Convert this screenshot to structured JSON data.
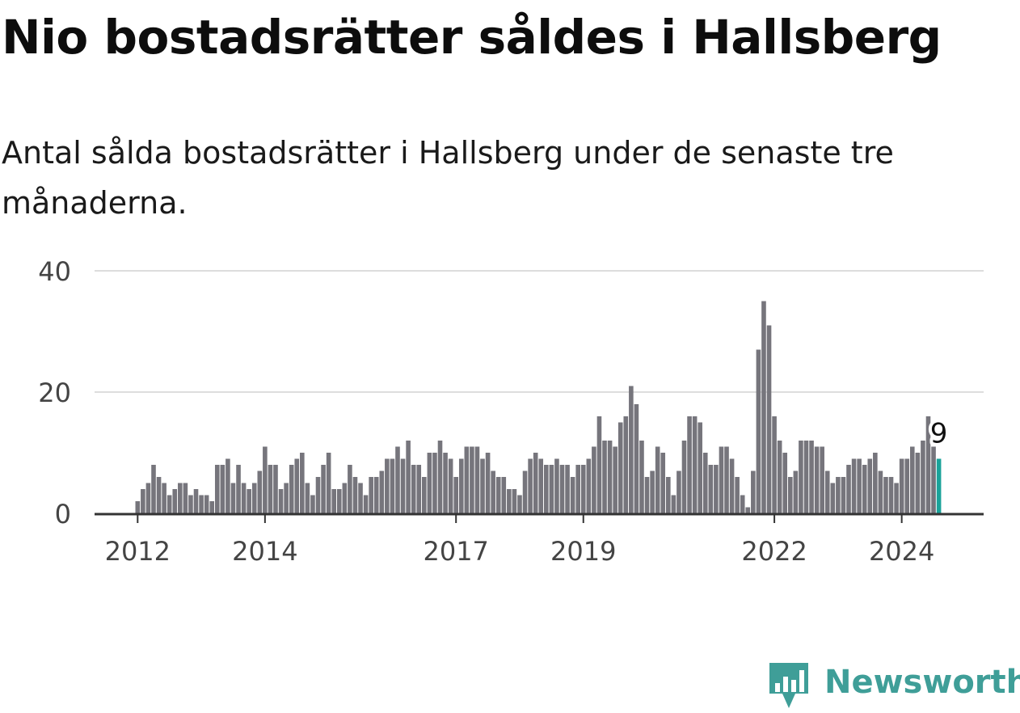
{
  "title": "Nio bostadsrätter såldes i Hallsberg",
  "subtitle": "Antal sålda bostadsrätter i Hallsberg under de senaste tre månaderna.",
  "brand": {
    "name": "Newsworthy",
    "icon": "newsworthy-logo-icon",
    "color": "#3f9e98"
  },
  "colors": {
    "bar": "#76757c",
    "highlight": "#1aa39a",
    "grid": "#dddddd",
    "axis": "#333333",
    "tick_text": "#444444"
  },
  "chart_data": {
    "type": "bar",
    "title": "",
    "xlabel": "",
    "ylabel": "",
    "ylim": [
      0,
      40
    ],
    "yticks": [
      "0",
      "20",
      "40"
    ],
    "xticks": [
      "2012",
      "2014",
      "2017",
      "2019",
      "2022",
      "2024"
    ],
    "grid": true,
    "series": [
      {
        "values": [
          2,
          4,
          5,
          8,
          6,
          5,
          3,
          4,
          5,
          5,
          3,
          4,
          3,
          3,
          2,
          8,
          8,
          9,
          5,
          8,
          5,
          4,
          5,
          7,
          11,
          8,
          8,
          4,
          5,
          8,
          9,
          10,
          5,
          3,
          6,
          8,
          10,
          4,
          4,
          5,
          8,
          6,
          5,
          3,
          6,
          6,
          7,
          9,
          9,
          11,
          9,
          12,
          8,
          8,
          6,
          10,
          10,
          12,
          10,
          9,
          6,
          9,
          11,
          11,
          11,
          9,
          10,
          7,
          6,
          6,
          4,
          4,
          3,
          7,
          9,
          10,
          9,
          8,
          8,
          9,
          8,
          8,
          6,
          8,
          8,
          9,
          11,
          16,
          12,
          12,
          11,
          15,
          16,
          21,
          18,
          12,
          6,
          7,
          11,
          10,
          6,
          3,
          7,
          12,
          16,
          16,
          15,
          10,
          8,
          8,
          11,
          11,
          9,
          6,
          3,
          1,
          7,
          27,
          35,
          31,
          16,
          12,
          10,
          6,
          7,
          12,
          12,
          12,
          11,
          11,
          7,
          5,
          6,
          6,
          8,
          9,
          9,
          8,
          9,
          10,
          7,
          6,
          6,
          5,
          9,
          9,
          11,
          10,
          12,
          16,
          11,
          9
        ]
      }
    ],
    "highlight": {
      "index": 151,
      "value": 9,
      "label": "9"
    }
  }
}
